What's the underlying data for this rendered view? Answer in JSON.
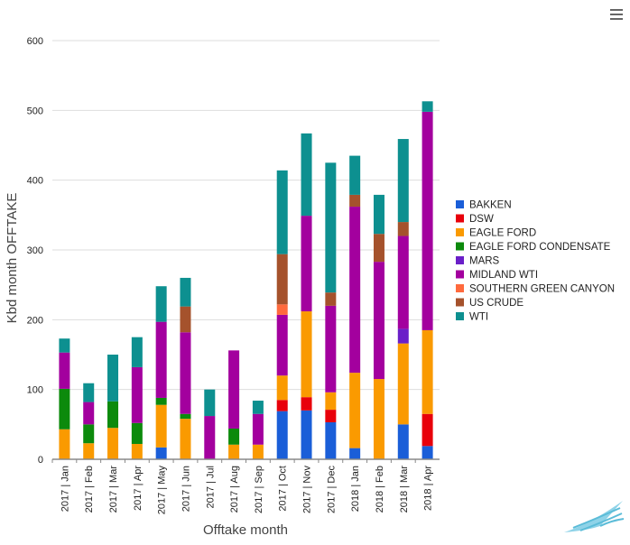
{
  "chart_data": {
    "type": "bar",
    "stacked": true,
    "title": "",
    "xlabel": "Offtake month",
    "ylabel": "Kbd month OFFTAKE",
    "ylim": [
      0,
      600
    ],
    "yticks": [
      0,
      100,
      200,
      300,
      400,
      500,
      600
    ],
    "grid": true,
    "legend_position": "right",
    "categories": [
      "2017 | Jan",
      "2017 | Feb",
      "2017 | Mar",
      "2017 | Apr",
      "2017 | May",
      "2017 | Jun",
      "2017 | Jul",
      "2017 | Aug",
      "2017 | Sep",
      "2017 | Oct",
      "2017 | Nov",
      "2017 | Dec",
      "2018 | Jan",
      "2018 | Feb",
      "2018 | Mar",
      "2018 | Apr"
    ],
    "series": [
      {
        "name": "BAKKEN",
        "color": "#1a5ed8",
        "values": [
          0,
          0,
          0,
          0,
          17,
          0,
          0,
          0,
          0,
          69,
          70,
          53,
          16,
          0,
          50,
          19
        ]
      },
      {
        "name": "DSW",
        "color": "#e8000b",
        "values": [
          0,
          0,
          0,
          0,
          0,
          0,
          0,
          0,
          0,
          16,
          19,
          18,
          0,
          0,
          0,
          46
        ]
      },
      {
        "name": "EAGLE FORD",
        "color": "#fa9a00",
        "values": [
          43,
          23,
          45,
          22,
          61,
          58,
          0,
          21,
          21,
          35,
          123,
          25,
          108,
          115,
          116,
          120
        ]
      },
      {
        "name": "EAGLE FORD CONDENSATE",
        "color": "#0c8a0c",
        "values": [
          58,
          27,
          38,
          30,
          10,
          7,
          0,
          23,
          0,
          0,
          0,
          0,
          0,
          0,
          0,
          0
        ]
      },
      {
        "name": "MARS",
        "color": "#6a1fc8",
        "values": [
          0,
          0,
          0,
          0,
          0,
          0,
          0,
          0,
          0,
          0,
          0,
          0,
          0,
          0,
          21,
          0
        ]
      },
      {
        "name": "MIDLAND WTI",
        "color": "#a3009e",
        "values": [
          52,
          32,
          0,
          80,
          109,
          117,
          62,
          112,
          44,
          87,
          137,
          124,
          238,
          168,
          133,
          313
        ]
      },
      {
        "name": "SOUTHERN GREEN CANYON",
        "color": "#ff6a3d",
        "values": [
          0,
          0,
          0,
          0,
          0,
          0,
          0,
          0,
          0,
          15,
          0,
          0,
          0,
          0,
          0,
          0
        ]
      },
      {
        "name": "US CRUDE",
        "color": "#a5522c",
        "values": [
          0,
          0,
          0,
          0,
          0,
          37,
          0,
          0,
          0,
          72,
          0,
          19,
          17,
          40,
          20,
          0
        ]
      },
      {
        "name": "WTI",
        "color": "#0d9090",
        "values": [
          20,
          27,
          67,
          43,
          51,
          41,
          38,
          0,
          19,
          120,
          118,
          186,
          56,
          56,
          119,
          15
        ]
      }
    ]
  }
}
